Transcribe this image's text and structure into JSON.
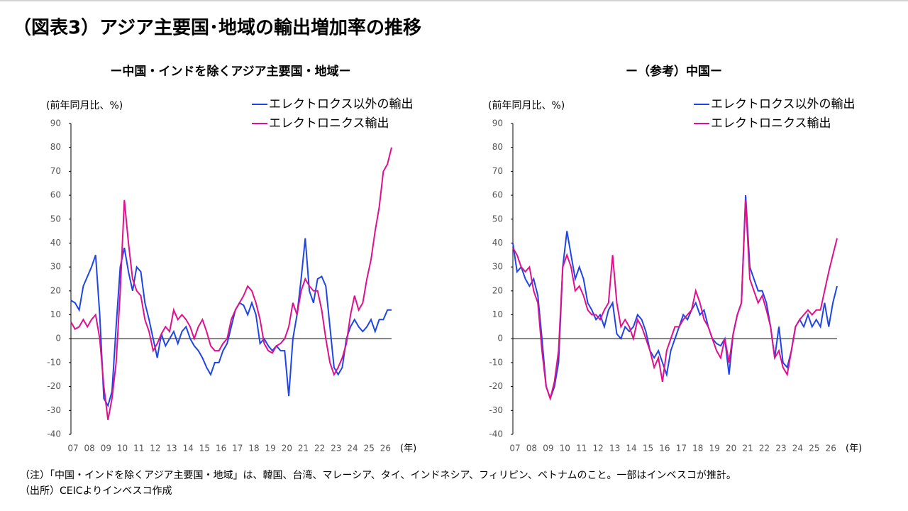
{
  "title": "（図表3）アジア主要国･地域の輸出増加率の推移",
  "chart_data": [
    {
      "type": "line",
      "title": "ー中国・インドを除くアジア主要国・地域ー",
      "y_label": "(前年同月比、%)",
      "x_label": "(年)",
      "x": [
        2007,
        2007.25,
        2007.5,
        2007.75,
        2008,
        2008.25,
        2008.5,
        2008.75,
        2009,
        2009.25,
        2009.5,
        2009.75,
        2010,
        2010.25,
        2010.5,
        2010.75,
        2011,
        2011.25,
        2011.5,
        2011.75,
        2012,
        2012.25,
        2012.5,
        2012.75,
        2013,
        2013.25,
        2013.5,
        2013.75,
        2014,
        2014.25,
        2014.5,
        2014.75,
        2015,
        2015.25,
        2015.5,
        2015.75,
        2016,
        2016.25,
        2016.5,
        2016.75,
        2017,
        2017.25,
        2017.5,
        2017.75,
        2018,
        2018.25,
        2018.5,
        2018.75,
        2019,
        2019.25,
        2019.5,
        2019.75,
        2020,
        2020.25,
        2020.5,
        2020.75,
        2021,
        2021.25,
        2021.5,
        2021.75,
        2022,
        2022.25,
        2022.5,
        2022.75,
        2023,
        2023.25,
        2023.5,
        2023.75,
        2024,
        2024.25,
        2024.5,
        2024.75,
        2025,
        2025.25,
        2025.5,
        2025.75,
        2026,
        2026.25,
        2026.5
      ],
      "xlim": [
        2007,
        2026.5
      ],
      "xticks": [
        {
          "value": 2007,
          "label": "07"
        },
        {
          "value": 2008,
          "label": "08"
        },
        {
          "value": 2009,
          "label": "09"
        },
        {
          "value": 2010,
          "label": "10"
        },
        {
          "value": 2011,
          "label": "11"
        },
        {
          "value": 2012,
          "label": "12"
        },
        {
          "value": 2013,
          "label": "13"
        },
        {
          "value": 2014,
          "label": "14"
        },
        {
          "value": 2015,
          "label": "15"
        },
        {
          "value": 2016,
          "label": "16"
        },
        {
          "value": 2017,
          "label": "17"
        },
        {
          "value": 2018,
          "label": "18"
        },
        {
          "value": 2019,
          "label": "19"
        },
        {
          "value": 2020,
          "label": "20"
        },
        {
          "value": 2021,
          "label": "21"
        },
        {
          "value": 2022,
          "label": "22"
        },
        {
          "value": 2023,
          "label": "23"
        },
        {
          "value": 2024,
          "label": "24"
        },
        {
          "value": 2025,
          "label": "25"
        },
        {
          "value": 2026,
          "label": "26"
        }
      ],
      "ylim": [
        -40,
        90
      ],
      "yticks": [
        -40,
        -30,
        -20,
        -10,
        0,
        10,
        20,
        30,
        40,
        50,
        60,
        70,
        80,
        90
      ],
      "series": [
        {
          "name": "エレクトロクス以外の輸出",
          "color": "#1f45e6",
          "values": [
            16,
            15,
            12,
            22,
            26,
            30,
            35,
            10,
            -25,
            -28,
            -22,
            5,
            30,
            38,
            28,
            20,
            30,
            28,
            15,
            8,
            0,
            -8,
            2,
            -3,
            0,
            3,
            -2,
            3,
            5,
            0,
            -3,
            -5,
            -8,
            -12,
            -15,
            -10,
            -10,
            -5,
            -2,
            5,
            12,
            15,
            14,
            10,
            15,
            10,
            -2,
            0,
            -3,
            -5,
            -3,
            -5,
            -5,
            -24,
            0,
            10,
            25,
            42,
            20,
            15,
            25,
            26,
            22,
            5,
            -12,
            -15,
            -12,
            0,
            5,
            8,
            5,
            3,
            5,
            8,
            3,
            8,
            8,
            12,
            12
          ]
        },
        {
          "name": "エレクトロニクス輸出",
          "color": "#e0108c",
          "values": [
            7,
            4,
            5,
            8,
            5,
            8,
            10,
            0,
            -20,
            -34,
            -25,
            -10,
            20,
            58,
            40,
            25,
            20,
            18,
            8,
            3,
            -5,
            -2,
            2,
            5,
            3,
            12,
            8,
            10,
            8,
            5,
            0,
            5,
            8,
            3,
            -3,
            -5,
            -5,
            -2,
            0,
            8,
            12,
            15,
            18,
            22,
            20,
            15,
            8,
            -2,
            -5,
            -6,
            -3,
            -2,
            0,
            5,
            15,
            10,
            20,
            25,
            22,
            20,
            20,
            12,
            0,
            -10,
            -15,
            -12,
            -8,
            -2,
            10,
            18,
            12,
            15,
            25,
            33,
            45,
            55,
            70,
            73,
            80
          ]
        }
      ]
    },
    {
      "type": "line",
      "title": "ー（参考）中国ー",
      "y_label": "(前年同月比、%)",
      "x_label": "(年)",
      "x": [
        2007,
        2007.25,
        2007.5,
        2007.75,
        2008,
        2008.25,
        2008.5,
        2008.75,
        2009,
        2009.25,
        2009.5,
        2009.75,
        2010,
        2010.25,
        2010.5,
        2010.75,
        2011,
        2011.25,
        2011.5,
        2011.75,
        2012,
        2012.25,
        2012.5,
        2012.75,
        2013,
        2013.25,
        2013.5,
        2013.75,
        2014,
        2014.25,
        2014.5,
        2014.75,
        2015,
        2015.25,
        2015.5,
        2015.75,
        2016,
        2016.25,
        2016.5,
        2016.75,
        2017,
        2017.25,
        2017.5,
        2017.75,
        2018,
        2018.25,
        2018.5,
        2018.75,
        2019,
        2019.25,
        2019.5,
        2019.75,
        2020,
        2020.25,
        2020.5,
        2020.75,
        2021,
        2021.25,
        2021.5,
        2021.75,
        2022,
        2022.25,
        2022.5,
        2022.75,
        2023,
        2023.25,
        2023.5,
        2023.75,
        2024,
        2024.25,
        2024.5,
        2024.75,
        2025,
        2025.25,
        2025.5,
        2025.75,
        2026,
        2026.25,
        2026.5
      ],
      "xlim": [
        2007,
        2026.5
      ],
      "xticks": [
        {
          "value": 2007,
          "label": "07"
        },
        {
          "value": 2008,
          "label": "08"
        },
        {
          "value": 2009,
          "label": "09"
        },
        {
          "value": 2010,
          "label": "10"
        },
        {
          "value": 2011,
          "label": "11"
        },
        {
          "value": 2012,
          "label": "12"
        },
        {
          "value": 2013,
          "label": "13"
        },
        {
          "value": 2014,
          "label": "14"
        },
        {
          "value": 2015,
          "label": "15"
        },
        {
          "value": 2016,
          "label": "16"
        },
        {
          "value": 2017,
          "label": "17"
        },
        {
          "value": 2018,
          "label": "18"
        },
        {
          "value": 2019,
          "label": "19"
        },
        {
          "value": 2020,
          "label": "20"
        },
        {
          "value": 2021,
          "label": "21"
        },
        {
          "value": 2022,
          "label": "22"
        },
        {
          "value": 2023,
          "label": "23"
        },
        {
          "value": 2024,
          "label": "24"
        },
        {
          "value": 2025,
          "label": "25"
        },
        {
          "value": 2026,
          "label": "26"
        }
      ],
      "ylim": [
        -40,
        90
      ],
      "yticks": [
        -40,
        -30,
        -20,
        -10,
        0,
        10,
        20,
        30,
        40,
        50,
        60,
        70,
        80,
        90
      ],
      "series": [
        {
          "name": "エレクトロクス以外の輸出",
          "color": "#1f45e6",
          "values": [
            40,
            28,
            30,
            25,
            22,
            25,
            18,
            0,
            -20,
            -25,
            -20,
            -10,
            30,
            45,
            35,
            25,
            30,
            25,
            15,
            12,
            8,
            10,
            5,
            12,
            15,
            2,
            0,
            5,
            3,
            5,
            10,
            8,
            3,
            -5,
            -8,
            -5,
            -10,
            -15,
            -5,
            0,
            5,
            10,
            8,
            12,
            15,
            10,
            12,
            5,
            0,
            -2,
            -3,
            0,
            -15,
            2,
            10,
            15,
            60,
            30,
            25,
            20,
            20,
            15,
            5,
            -8,
            5,
            -10,
            -12,
            -5,
            5,
            8,
            5,
            10,
            5,
            8,
            5,
            15,
            5,
            15,
            22
          ]
        },
        {
          "name": "エレクトロニクス輸出",
          "color": "#e0108c",
          "values": [
            38,
            35,
            30,
            28,
            30,
            20,
            15,
            -5,
            -20,
            -25,
            -18,
            -5,
            30,
            35,
            30,
            20,
            22,
            18,
            12,
            10,
            10,
            8,
            12,
            15,
            35,
            15,
            5,
            8,
            5,
            0,
            8,
            5,
            0,
            -5,
            -12,
            -8,
            -18,
            -5,
            0,
            5,
            5,
            8,
            10,
            12,
            20,
            15,
            8,
            5,
            0,
            -5,
            -8,
            0,
            -10,
            2,
            10,
            15,
            58,
            25,
            20,
            15,
            18,
            12,
            5,
            -8,
            -5,
            -12,
            -15,
            -5,
            5,
            8,
            10,
            12,
            10,
            12,
            12,
            20,
            28,
            35,
            42
          ]
        }
      ]
    }
  ],
  "notes": [
    "（注）「中国・インドを除くアジア主要国・地域」は、韓国、台湾、マレーシア、タイ、インドネシア、フィリピン、ベトナムのこと。一部はインベスコが推計。",
    "（出所）CEICよりインベスコ作成"
  ]
}
